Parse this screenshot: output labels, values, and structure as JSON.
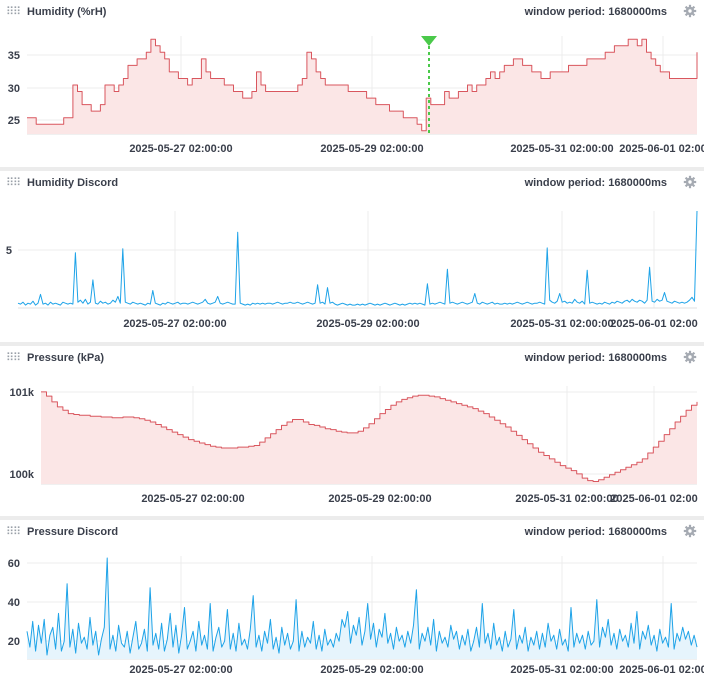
{
  "panels": [
    {
      "title": "Humidity (%rH)",
      "period_label": "window period: 1680000ms",
      "settings_icon": "gear-icon",
      "chart_data": {
        "type": "area",
        "color": "#d9565e",
        "fill": "#fbe6e6",
        "grid": true,
        "x_tick_labels": [
          "2025-05-27 02:00:00",
          "2025-05-29 02:00:00",
          "2025-05-31 02:00:00",
          "2025-06-01 02:00"
        ],
        "y_ticks": [
          "35",
          "30",
          "25"
        ],
        "ylim": [
          22.5,
          37.5
        ],
        "marker": {
          "type": "event-marker",
          "color": "#4ac94a",
          "at_fraction": 0.6
        },
        "series": [
          {
            "values": [
              25,
              25,
              24,
              24,
              24,
              24,
              24,
              24,
              25,
              25,
              30,
              29,
              27,
              27,
              26,
              26,
              27,
              30,
              30,
              29,
              30,
              31,
              33,
              33,
              34,
              34,
              35,
              37,
              36,
              35,
              34,
              32,
              32,
              31,
              31,
              30,
              31,
              31,
              34,
              32,
              31,
              31,
              31,
              30,
              30,
              29,
              29,
              28,
              28,
              29,
              32,
              30,
              29,
              29,
              29,
              29,
              29,
              29,
              29,
              30,
              31,
              35,
              34,
              32,
              31,
              30,
              30,
              30,
              30,
              30,
              29,
              29,
              29,
              29,
              28,
              28,
              27,
              27,
              27,
              26,
              26,
              26,
              25,
              25,
              25,
              24,
              23,
              28,
              27,
              27,
              27,
              29,
              28,
              28,
              29,
              29,
              30,
              29,
              30,
              30,
              31,
              32,
              31,
              32,
              33,
              33,
              34,
              34,
              33,
              33,
              32,
              32,
              31,
              31,
              32,
              32,
              32,
              32,
              33,
              33,
              33,
              33,
              34,
              34,
              34,
              34,
              35,
              35,
              36,
              36,
              36,
              37,
              37,
              36,
              37,
              35,
              34,
              33,
              32,
              32,
              31,
              31,
              31,
              31,
              31,
              31,
              35
            ]
          }
        ]
      }
    },
    {
      "title": "Humidity Discord",
      "period_label": "window period: 1680000ms",
      "settings_icon": "gear-icon",
      "chart_data": {
        "type": "line",
        "color": "#1ea3e8",
        "grid": true,
        "x_tick_labels": [
          "2025-05-27 02:00:00",
          "2025-05-29 02:00:00",
          "2025-05-31 02:00:00",
          "2025-06-01 02:00"
        ],
        "y_ticks": [
          "5"
        ],
        "ylim": [
          0,
          10
        ],
        "series": [
          {
            "values": [
              0.5,
              0.4,
              0.6,
              0.3,
              0.5,
              0.4,
              0.7,
              0.3,
              0.5,
              1.4,
              0.4,
              0.5,
              0.3,
              0.6,
              0.4,
              0.5,
              0.4,
              0.3,
              0.6,
              0.5,
              0.4,
              0.5,
              0.4,
              5.7,
              0.6,
              0.8,
              0.5,
              0.9,
              0.4,
              0.6,
              2.9,
              0.5,
              0.4,
              0.7,
              0.5,
              0.6,
              0.4,
              0.5,
              0.8,
              0.6,
              1.2,
              0.5,
              6.1,
              0.6,
              0.5,
              0.4,
              0.6,
              0.5,
              0.4,
              0.5,
              0.4,
              0.3,
              0.5,
              0.4,
              1.8,
              0.5,
              0.4,
              0.3,
              0.5,
              0.4,
              0.6,
              0.5,
              0.4,
              0.5,
              0.6,
              0.4,
              0.5,
              0.5,
              0.4,
              0.5,
              0.6,
              0.5,
              0.4,
              0.5,
              0.6,
              0.9,
              0.5,
              0.4,
              0.5,
              0.6,
              1.2,
              0.5,
              0.4,
              0.5,
              0.6,
              0.5,
              0.4,
              0.4,
              7.8,
              0.5,
              0.4,
              0.3,
              0.4,
              0.3,
              0.5,
              0.4,
              0.5,
              0.4,
              0.5,
              0.4,
              0.5,
              0.5,
              0.4,
              0.5,
              0.6,
              0.5,
              0.4,
              0.5,
              0.5,
              0.6,
              0.5,
              0.5,
              0.6,
              0.5,
              0.4,
              0.5,
              0.6,
              0.5,
              0.4,
              0.5,
              2.4,
              0.5,
              0.6,
              0.4,
              2.1,
              0.5,
              0.6,
              0.4,
              0.3,
              0.4,
              0.5,
              0.4,
              0.3,
              0.4,
              0.3,
              0.3,
              0.4,
              0.3,
              0.4,
              0.3,
              0.4,
              0.5,
              0.4,
              0.3,
              0.4,
              0.3,
              0.4,
              0.5,
              0.4,
              0.3,
              0.4,
              0.5,
              0.4,
              0.3,
              0.4,
              0.3,
              0.4,
              0.5,
              0.4,
              0.5,
              0.4,
              0.5,
              0.4,
              0.3,
              2.5,
              0.4,
              0.5,
              0.4,
              0.5,
              0.6,
              0.5,
              0.4,
              4.0,
              0.5,
              0.6,
              0.5,
              0.4,
              0.5,
              0.6,
              0.5,
              0.4,
              0.5,
              0.6,
              1.5,
              0.5,
              0.4,
              0.6,
              0.5,
              0.4,
              0.5,
              0.6,
              0.4,
              0.5,
              0.4,
              0.4,
              0.5,
              0.4,
              0.5,
              0.4,
              0.5,
              0.6,
              0.5,
              0.4,
              0.5,
              0.6,
              0.5,
              0.4,
              0.5,
              0.5,
              0.6,
              0.5,
              0.4,
              6.2,
              0.8,
              0.6,
              0.5,
              0.7,
              1.5,
              0.6,
              0.7,
              0.5,
              0.6,
              0.5,
              0.9,
              0.6,
              0.5,
              0.7,
              0.4,
              3.9,
              0.5,
              0.6,
              0.5,
              0.4,
              0.5,
              0.4,
              0.6,
              0.5,
              0.4,
              0.6,
              0.5,
              0.7,
              0.6,
              0.5,
              0.7,
              0.8,
              0.6,
              0.9,
              0.7,
              0.6,
              0.8,
              0.7,
              0.5,
              0.8,
              4.2,
              0.7,
              0.6,
              0.9,
              0.7,
              0.8,
              1.6,
              0.7,
              0.6,
              0.5,
              0.7,
              0.6,
              0.5,
              0.6,
              0.5,
              0.6,
              0.8,
              1.1,
              0.7,
              10.0
            ]
          }
        ]
      }
    },
    {
      "title": "Pressure (kPa)",
      "period_label": "window period: 1680000ms",
      "settings_icon": "gear-icon",
      "chart_data": {
        "type": "area",
        "color": "#d9565e",
        "fill": "#fbe6e6",
        "grid": true,
        "x_tick_labels": [
          "2025-05-27 02:00:00",
          "2025-05-29 02:00:00",
          "2025-05-31 02:00:00",
          "2025-06-01 02:00"
        ],
        "y_ticks": [
          "101k",
          "100k"
        ],
        "ylim": [
          99.9,
          101.07
        ],
        "series": [
          {
            "values": [
              101.0,
              100.95,
              100.88,
              100.82,
              100.78,
              100.74,
              100.73,
              100.72,
              100.72,
              100.71,
              100.71,
              100.7,
              100.7,
              100.69,
              100.69,
              100.7,
              100.7,
              100.69,
              100.68,
              100.66,
              100.64,
              100.61,
              100.58,
              100.55,
              100.52,
              100.49,
              100.46,
              100.43,
              100.41,
              100.39,
              100.37,
              100.35,
              100.34,
              100.33,
              100.33,
              100.33,
              100.34,
              100.34,
              100.35,
              100.36,
              100.4,
              100.45,
              100.5,
              100.55,
              100.6,
              100.64,
              100.67,
              100.67,
              100.64,
              100.61,
              100.6,
              100.58,
              100.56,
              100.55,
              100.53,
              100.52,
              100.51,
              100.51,
              100.53,
              100.57,
              100.62,
              100.68,
              100.74,
              100.79,
              100.84,
              100.88,
              100.91,
              100.93,
              100.95,
              100.96,
              100.96,
              100.95,
              100.94,
              100.92,
              100.9,
              100.88,
              100.86,
              100.84,
              100.82,
              100.8,
              100.77,
              100.74,
              100.7,
              100.66,
              100.62,
              100.58,
              100.53,
              100.48,
              100.43,
              100.38,
              100.33,
              100.28,
              100.24,
              100.2,
              100.16,
              100.12,
              100.09,
              100.06,
              100.02,
              99.97,
              99.94,
              99.93,
              99.95,
              99.98,
              100.01,
              100.04,
              100.07,
              100.1,
              100.13,
              100.16,
              100.2,
              100.27,
              100.34,
              100.41,
              100.49,
              100.56,
              100.64,
              100.71,
              100.78,
              100.84,
              100.88
            ]
          }
        ]
      }
    },
    {
      "title": "Pressure Discord",
      "period_label": "window period: 1680000ms",
      "settings_icon": "gear-icon",
      "chart_data": {
        "type": "line",
        "color": "#1ea3e8",
        "fill": "#e6f4fc",
        "grid": true,
        "x_tick_labels": [
          "2025-05-27 02:00:00",
          "2025-05-29 02:00:00",
          "2025-05-31 02:00:00",
          "2025-06-01 02:00"
        ],
        "y_ticks": [
          "60",
          "40",
          "20"
        ],
        "ylim": [
          10,
          62
        ],
        "series": [
          {
            "values": [
              24,
              16,
              29,
              14,
              27,
              18,
              30,
              12,
              22,
              26,
              15,
              33,
              14,
              19,
              48,
              16,
              25,
              13,
              28,
              18,
              21,
              15,
              31,
              17,
              24,
              12,
              20,
              26,
              61,
              15,
              22,
              14,
              27,
              18,
              16,
              24,
              13,
              21,
              29,
              15,
              18,
              25,
              14,
              46,
              17,
              23,
              15,
              28,
              14,
              20,
              33,
              16,
              27,
              13,
              22,
              36,
              15,
              19,
              24,
              14,
              29,
              17,
              22,
              15,
              38,
              14,
              21,
              26,
              16,
              19,
              35,
              15,
              23,
              14,
              28,
              17,
              20,
              15,
              25,
              42,
              16,
              22,
              14,
              24,
              18,
              30,
              15,
              21,
              13,
              26,
              17,
              23,
              15,
              19,
              40,
              14,
              24,
              16,
              21,
              18,
              29,
              15,
              22,
              14,
              25,
              17,
              20,
              16,
              23,
              19,
              30,
              26,
              34,
              18,
              27,
              22,
              31,
              17,
              24,
              38,
              20,
              28,
              16,
              25,
              21,
              33,
              18,
              23,
              15,
              26,
              19,
              22,
              16,
              24,
              18,
              27,
              45,
              15,
              23,
              19,
              26,
              17,
              30,
              14,
              24,
              18,
              21,
              16,
              27,
              20,
              24,
              15,
              22,
              17,
              25,
              14,
              19,
              26,
              16,
              38,
              18,
              23,
              15,
              28,
              17,
              21,
              14,
              24,
              16,
              20,
              35,
              15,
              22,
              18,
              26,
              14,
              21,
              17,
              24,
              15,
              23,
              16,
              28,
              19,
              22,
              15,
              25,
              17,
              20,
              14,
              36,
              16,
              23,
              18,
              22,
              15,
              24,
              17,
              19,
              40,
              16,
              26,
              21,
              30,
              17,
              23,
              15,
              25,
              19,
              22,
              16,
              28,
              18,
              34,
              15,
              24,
              20,
              27,
              17,
              22,
              14,
              25,
              18,
              21,
              16,
              38,
              15,
              23,
              19,
              26,
              20,
              24,
              17,
              22,
              16
            ]
          }
        ]
      }
    }
  ]
}
